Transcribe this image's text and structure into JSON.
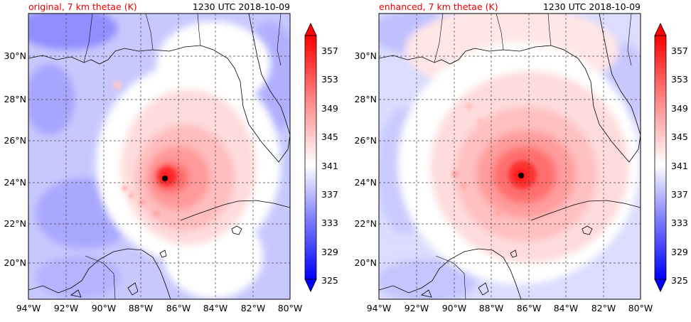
{
  "panels": [
    {
      "title_left": "original, 7 km thetae (K)",
      "title_right": "1230 UTC 2018-10-09"
    },
    {
      "title_left": "enhanced, 7 km thetae (K)",
      "title_right": "1230 UTC 2018-10-09"
    }
  ],
  "colors": {
    "title_left": "#ee0000",
    "title_right": "#000000"
  },
  "lon_ticks": [
    "94°W",
    "92°W",
    "90°W",
    "88°W",
    "86°W",
    "84°W",
    "82°W",
    "80°W"
  ],
  "lat_ticks": [
    "30°N",
    "28°N",
    "26°N",
    "24°N",
    "22°N",
    "20°N"
  ],
  "colorbar": {
    "min": 325,
    "max": 359,
    "labels": [
      "357",
      "353",
      "349",
      "345",
      "341",
      "337",
      "333",
      "329",
      "325"
    ]
  }
}
